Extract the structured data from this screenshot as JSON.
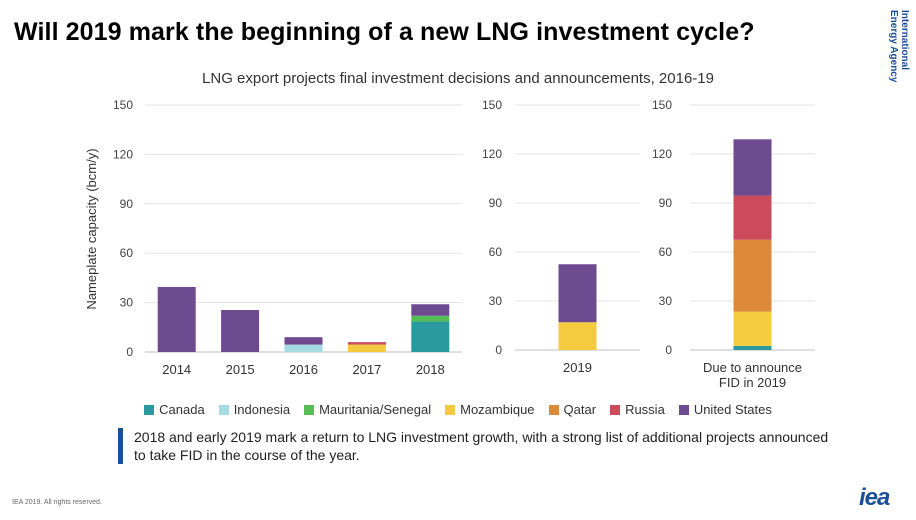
{
  "header": {
    "title": "Will 2019 mark the beginning of a new LNG investment cycle?",
    "brand_line1": "International",
    "brand_line2": "Energy Agency"
  },
  "note": "2018 and early 2019 mark a return to LNG investment growth, with a strong list of additional projects announced to take FID in the course of the year.",
  "footer": "IEA 2019. All rights reserved.",
  "logo": "iea",
  "colors": {
    "Canada": "#2a9a9e",
    "Indonesia": "#a6dbe3",
    "Mauritania/Senegal": "#55bd55",
    "Mozambique": "#f4cb3e",
    "Qatar": "#dd8a38",
    "Russia": "#cc4b5b",
    "United States": "#6e4a90"
  },
  "chart_data": {
    "type": "bar",
    "stacked": true,
    "title": "LNG export projects final investment decisions and announcements, 2016-19",
    "ylabel": "Nameplate capacity (bcm/y)",
    "ylim": [
      0,
      150
    ],
    "yticks": [
      0,
      30,
      60,
      90,
      120,
      150
    ],
    "grid": true,
    "legend_position": "bottom",
    "legend": [
      "Canada",
      "Indonesia",
      "Mauritania/Senegal",
      "Mozambique",
      "Qatar",
      "Russia",
      "United States"
    ],
    "panels": [
      {
        "categories": [
          "2014",
          "2015",
          "2016",
          "2017",
          "2018"
        ],
        "series": [
          {
            "name": "Canada",
            "values": [
              0,
              0,
              0,
              0,
              18.5
            ]
          },
          {
            "name": "Indonesia",
            "values": [
              0,
              0,
              4.5,
              0,
              0
            ]
          },
          {
            "name": "Mauritania/Senegal",
            "values": [
              0,
              0,
              0,
              0,
              3.5
            ]
          },
          {
            "name": "Mozambique",
            "values": [
              0,
              0,
              0,
              4.5,
              0
            ]
          },
          {
            "name": "Qatar",
            "values": [
              0,
              0,
              0,
              0,
              0
            ]
          },
          {
            "name": "Russia",
            "values": [
              0,
              0,
              0,
              1.5,
              0
            ]
          },
          {
            "name": "United States",
            "values": [
              39.5,
              25.5,
              4.5,
              0,
              7
            ]
          }
        ]
      },
      {
        "categories": [
          "2019"
        ],
        "series": [
          {
            "name": "Canada",
            "values": [
              0
            ]
          },
          {
            "name": "Indonesia",
            "values": [
              0
            ]
          },
          {
            "name": "Mauritania/Senegal",
            "values": [
              0
            ]
          },
          {
            "name": "Mozambique",
            "values": [
              17
            ]
          },
          {
            "name": "Qatar",
            "values": [
              0
            ]
          },
          {
            "name": "Russia",
            "values": [
              0
            ]
          },
          {
            "name": "United States",
            "values": [
              35.5
            ]
          }
        ]
      },
      {
        "categories": [
          "Due to announce\nFID in 2019"
        ],
        "series": [
          {
            "name": "Canada",
            "values": [
              2.5
            ]
          },
          {
            "name": "Indonesia",
            "values": [
              0
            ]
          },
          {
            "name": "Mauritania/Senegal",
            "values": [
              0
            ]
          },
          {
            "name": "Mozambique",
            "values": [
              21
            ]
          },
          {
            "name": "Qatar",
            "values": [
              44
            ]
          },
          {
            "name": "Russia",
            "values": [
              27
            ]
          },
          {
            "name": "United States",
            "values": [
              34.5
            ]
          }
        ]
      }
    ]
  }
}
